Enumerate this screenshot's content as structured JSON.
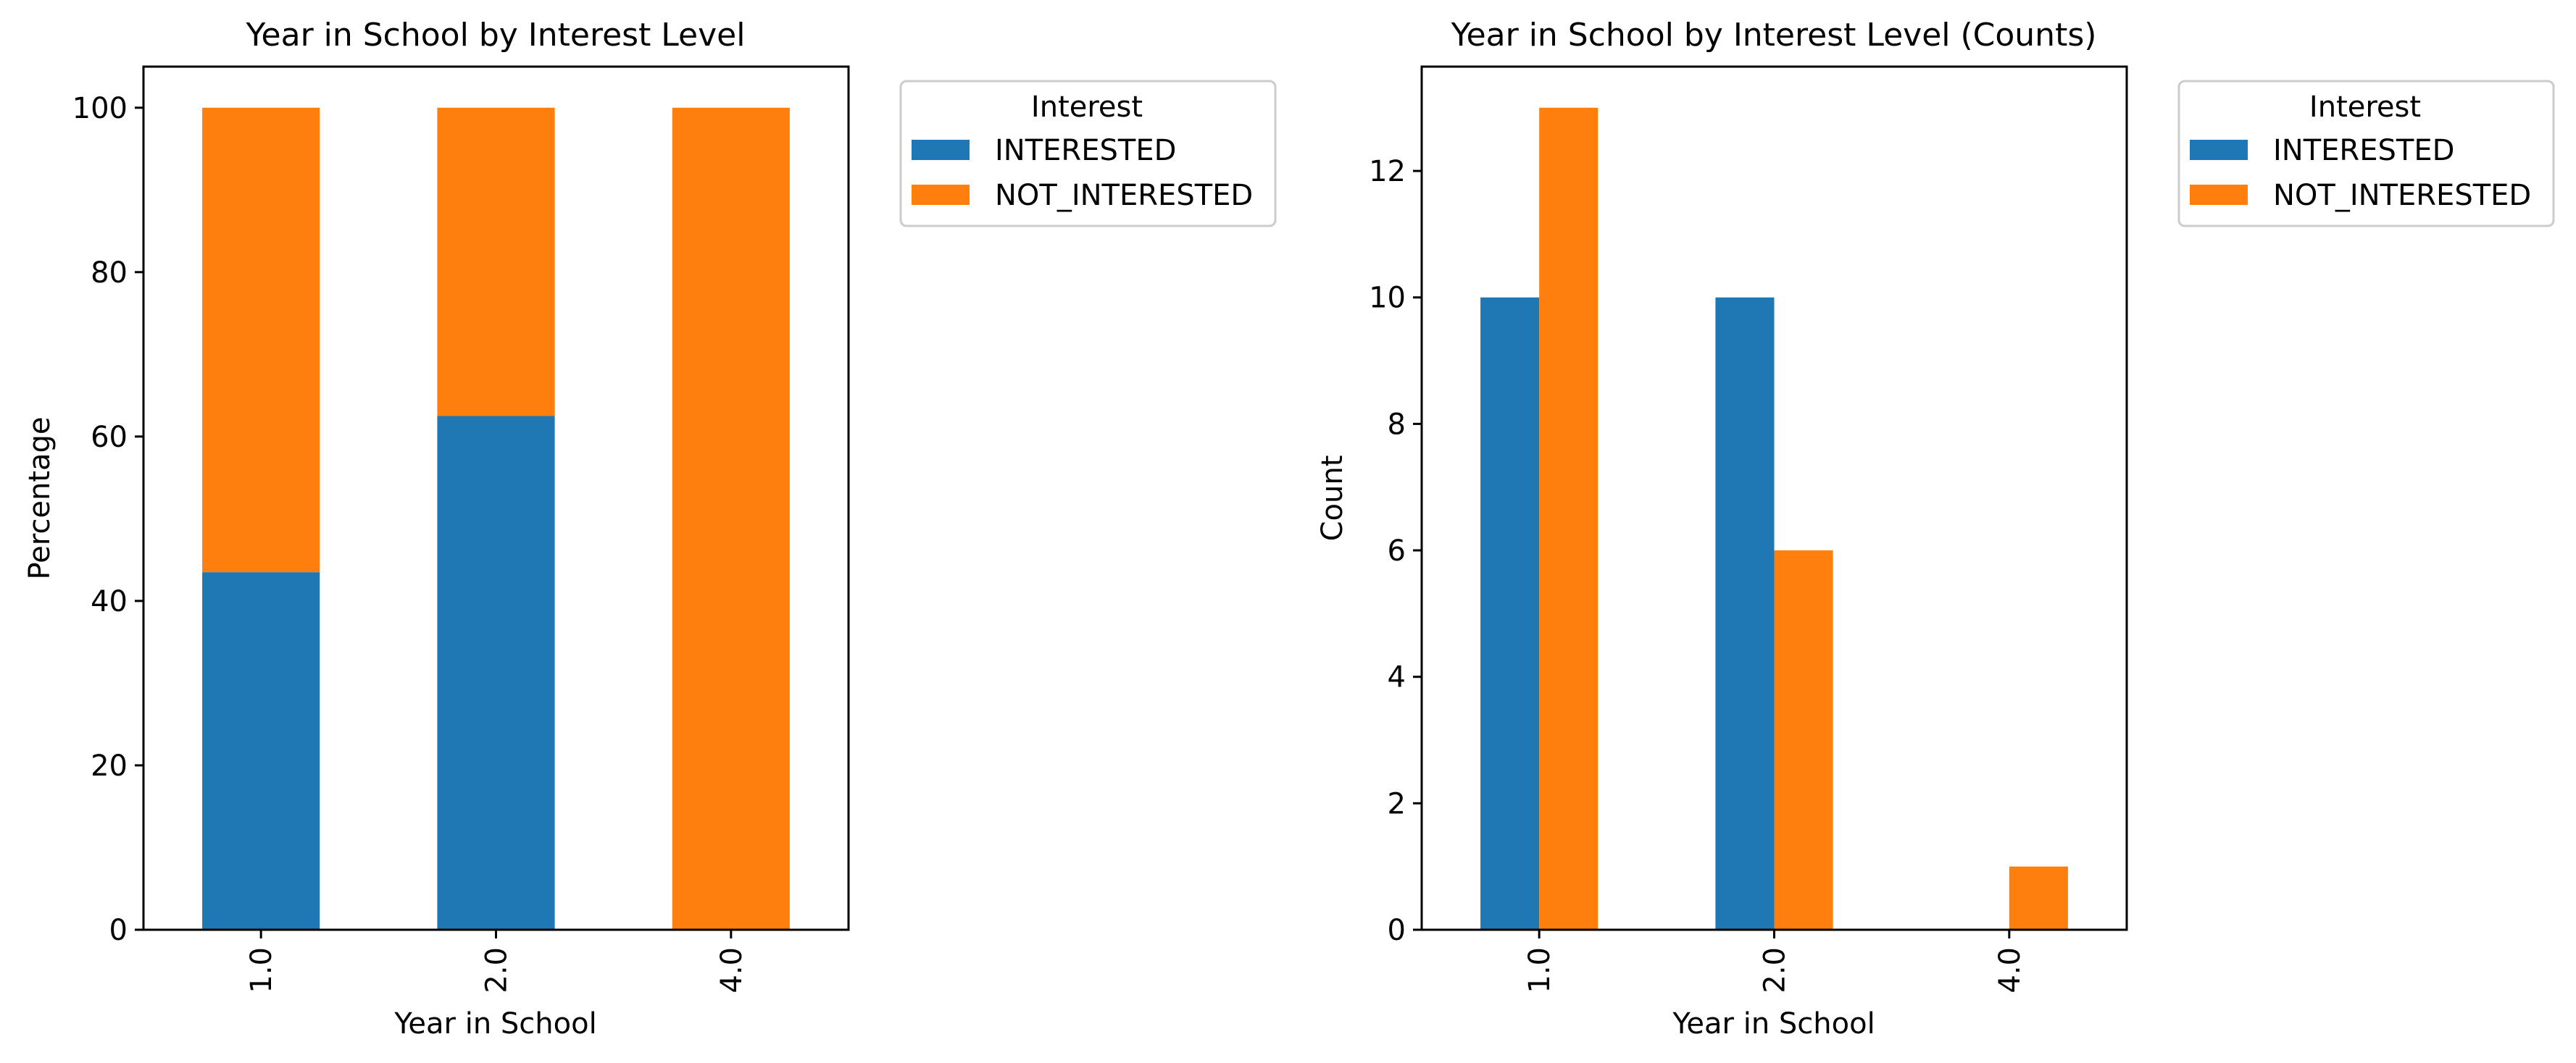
{
  "chart_data": [
    {
      "type": "bar",
      "stacked": true,
      "title": "Year in School by Interest Level",
      "xlabel": "Year in School",
      "ylabel": "Percentage",
      "categories": [
        "1.0",
        "2.0",
        "4.0"
      ],
      "ylim": [
        0,
        105
      ],
      "yticks": [
        0,
        20,
        40,
        60,
        80,
        100
      ],
      "grid": false,
      "legend": {
        "title": "Interest",
        "placement": "outside-top-right"
      },
      "series": [
        {
          "name": "INTERESTED",
          "values": [
            43.5,
            62.5,
            0
          ],
          "color": "#1f77b4"
        },
        {
          "name": "NOT_INTERESTED",
          "values": [
            56.5,
            37.5,
            100
          ],
          "color": "#ff7f0e"
        }
      ]
    },
    {
      "type": "bar",
      "stacked": false,
      "title": "Year in School by Interest Level (Counts)",
      "xlabel": "Year in School",
      "ylabel": "Count",
      "categories": [
        "1.0",
        "2.0",
        "4.0"
      ],
      "ylim": [
        0,
        13.65
      ],
      "yticks": [
        0,
        2,
        4,
        6,
        8,
        10,
        12
      ],
      "grid": false,
      "legend": {
        "title": "Interest",
        "placement": "outside-top-right"
      },
      "series": [
        {
          "name": "INTERESTED",
          "values": [
            10,
            10,
            0
          ],
          "color": "#1f77b4"
        },
        {
          "name": "NOT_INTERESTED",
          "values": [
            13,
            6,
            1
          ],
          "color": "#ff7f0e"
        }
      ]
    }
  ]
}
